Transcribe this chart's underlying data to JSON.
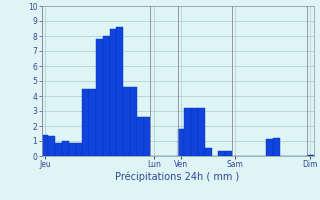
{
  "bar_values": [
    1.4,
    1.35,
    0.9,
    1.0,
    0.85,
    0.85,
    4.5,
    4.5,
    7.8,
    8.0,
    8.5,
    8.6,
    4.6,
    4.6,
    2.6,
    2.6,
    0,
    0,
    0,
    0,
    1.8,
    3.2,
    3.2,
    3.2,
    0.55,
    0,
    0.35,
    0.35,
    0,
    0,
    0,
    0,
    0,
    1.15,
    1.2,
    0,
    0,
    0,
    0,
    0.1
  ],
  "n_bars": 40,
  "ylim": [
    0,
    10
  ],
  "yticks": [
    0,
    1,
    2,
    3,
    4,
    5,
    6,
    7,
    8,
    9,
    10
  ],
  "day_labels": [
    "Jeu",
    "Lun",
    "Ven",
    "Sam",
    "Dim"
  ],
  "day_tick_positions": [
    0,
    16,
    20,
    28,
    39
  ],
  "vline_positions": [
    0,
    16,
    20,
    28,
    39
  ],
  "xlabel": "Précipitations 24h ( mm )",
  "bar_color": "#1144dd",
  "bar_edge_color": "#0033bb",
  "background_color": "#dff5f5",
  "grid_color": "#aacccc",
  "tick_color": "#334499",
  "label_color": "#334499"
}
